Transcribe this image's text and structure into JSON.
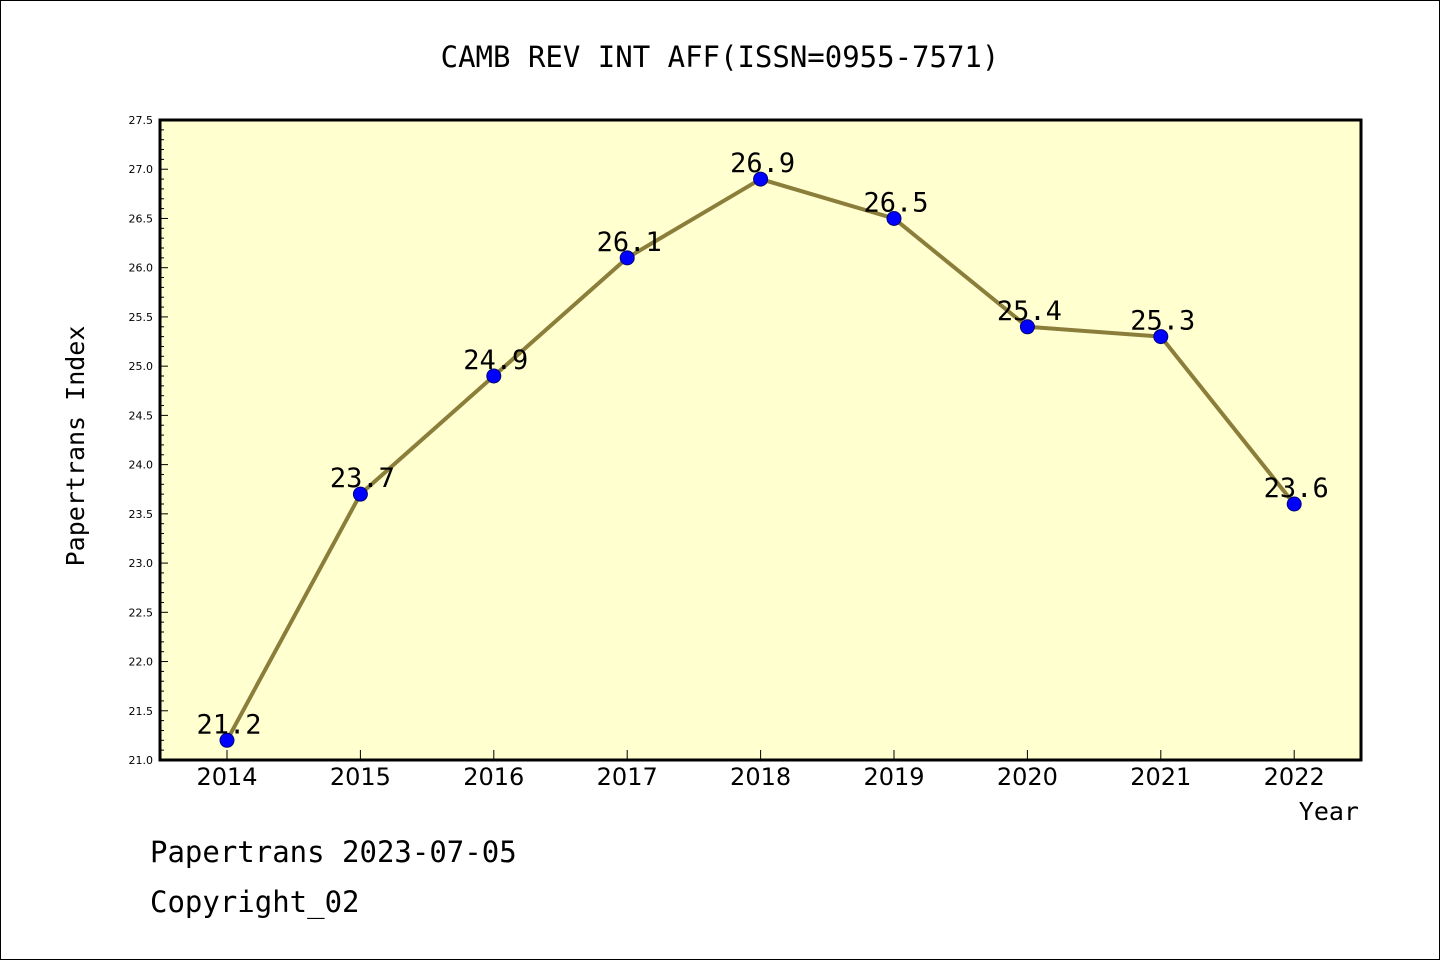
{
  "chart_data": {
    "type": "line",
    "title": "CAMB REV INT AFF(ISSN=0955-7571)",
    "xlabel": "Year",
    "ylabel": "Papertrans Index",
    "categories": [
      "2014",
      "2015",
      "2016",
      "2017",
      "2018",
      "2019",
      "2020",
      "2021",
      "2022"
    ],
    "series": [
      {
        "values": [
          21.2,
          23.7,
          24.9,
          26.1,
          26.9,
          26.5,
          25.4,
          25.3,
          23.6
        ],
        "labels": [
          "21.2",
          "23.7",
          "24.9",
          "26.1",
          "26.9",
          "26.5",
          "25.4",
          "25.3",
          "23.6"
        ]
      }
    ],
    "ylim": [
      21.0,
      27.5
    ],
    "yticks": [
      "21.0",
      "21.5",
      "22.0",
      "22.5",
      "23.0",
      "23.5",
      "24.0",
      "24.5",
      "25.0",
      "25.5",
      "26.0",
      "26.5",
      "27.0",
      "27.5"
    ],
    "grid": false,
    "legend": "none",
    "colors": {
      "plot_background": "#ffffd0",
      "line": "#8b7d3a",
      "marker": "#0000ff",
      "axis": "#000000"
    }
  },
  "footer": {
    "line1": "Papertrans 2023-07-05",
    "line2": "Copyright_02"
  }
}
